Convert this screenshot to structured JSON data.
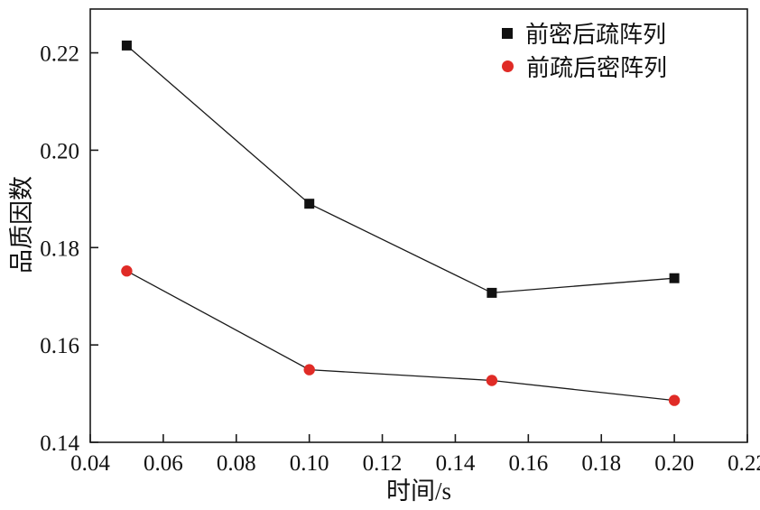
{
  "chart_data": {
    "type": "line",
    "title": "",
    "xlabel": "时间/s",
    "ylabel": "品质因数",
    "x": [
      0.05,
      0.1,
      0.15,
      0.2
    ],
    "series": [
      {
        "name": "前密后疏阵列",
        "marker": "square",
        "color": "#111111",
        "values": [
          0.2215,
          0.189,
          0.1707,
          0.1737
        ]
      },
      {
        "name": "前疏后密阵列",
        "marker": "circle",
        "color": "#e02b26",
        "values": [
          0.1752,
          0.1549,
          0.1527,
          0.1486
        ]
      }
    ],
    "line_color": "#1a1a1a",
    "xlim": [
      0.04,
      0.22
    ],
    "ylim": [
      0.14,
      0.229
    ],
    "xticks": [
      0.04,
      0.06,
      0.08,
      0.1,
      0.12,
      0.14,
      0.16,
      0.18,
      0.2,
      0.22
    ],
    "yticks": [
      0.14,
      0.16,
      0.18,
      0.2,
      0.22
    ],
    "grid": false,
    "legend_position": "top-right"
  }
}
